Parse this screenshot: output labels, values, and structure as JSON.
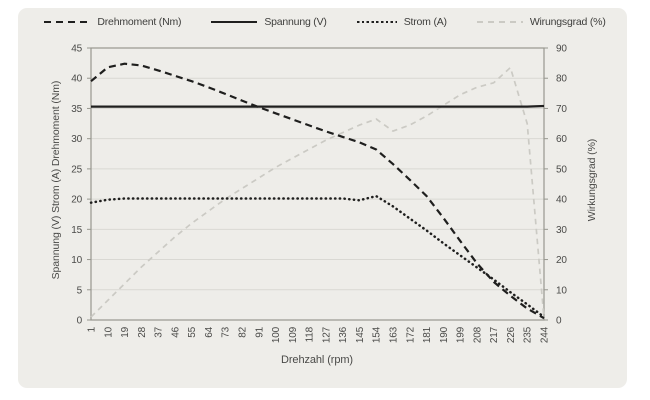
{
  "chart_data": {
    "type": "line",
    "xlabel": "Drehzahl (rpm)",
    "ylabel_left": "Spannung (V) Strom (A) Drehmoment (Nm)",
    "ylabel_right": "Wirkungsgrad (%)",
    "x_categories": [
      1,
      10,
      19,
      28,
      37,
      46,
      55,
      64,
      73,
      82,
      91,
      100,
      109,
      118,
      127,
      136,
      145,
      154,
      163,
      172,
      181,
      190,
      199,
      208,
      217,
      226,
      235,
      244
    ],
    "y_left": {
      "min": 0,
      "max": 45,
      "ticks": [
        0,
        5,
        10,
        15,
        20,
        25,
        30,
        35,
        40,
        45
      ]
    },
    "y_right": {
      "min": 0,
      "max": 90,
      "ticks": [
        0,
        10,
        20,
        30,
        40,
        50,
        60,
        70,
        80,
        90
      ]
    },
    "grid": "horizontal",
    "legend_position": "top",
    "series": [
      {
        "name": "Drehmoment (Nm)",
        "axis": "left",
        "style": "dashed",
        "color": "#1f1f1e",
        "values": [
          39.5,
          41.8,
          42.4,
          42.1,
          41.3,
          40.4,
          39.5,
          38.5,
          37.4,
          36.3,
          35.2,
          34.2,
          33.2,
          32.2,
          31.2,
          30.3,
          29.4,
          28.2,
          25.8,
          23.2,
          20.5,
          16.9,
          13.1,
          9.4,
          6.3,
          4.0,
          1.9,
          0.3
        ]
      },
      {
        "name": "Spannung (V)",
        "axis": "left",
        "style": "solid",
        "color": "#1f1f1e",
        "values": [
          35.3,
          35.3,
          35.3,
          35.3,
          35.3,
          35.3,
          35.3,
          35.3,
          35.3,
          35.3,
          35.3,
          35.3,
          35.3,
          35.3,
          35.3,
          35.3,
          35.3,
          35.3,
          35.3,
          35.3,
          35.3,
          35.3,
          35.3,
          35.3,
          35.3,
          35.3,
          35.3,
          35.4
        ]
      },
      {
        "name": "Strom (A)",
        "axis": "left",
        "style": "dotted",
        "color": "#1f1f1e",
        "values": [
          19.4,
          19.9,
          20.1,
          20.1,
          20.1,
          20.1,
          20.1,
          20.1,
          20.1,
          20.1,
          20.1,
          20.1,
          20.1,
          20.1,
          20.1,
          20.1,
          19.8,
          20.5,
          18.8,
          16.8,
          14.8,
          12.7,
          10.7,
          8.7,
          6.7,
          4.6,
          2.6,
          0.5
        ]
      },
      {
        "name": "Wirungsgrad (%)",
        "axis": "right",
        "style": "dashed-light",
        "color": "#cbcac4",
        "values": [
          1,
          6.5,
          12,
          17.5,
          22.5,
          27.5,
          32,
          36,
          40,
          43.5,
          47,
          50.5,
          53.5,
          56.5,
          59.5,
          62,
          64.5,
          66.5,
          62.5,
          64.5,
          67.5,
          71,
          74.5,
          77,
          78.5,
          83.5,
          65,
          0.5
        ]
      }
    ],
    "colors": {
      "panel_bg": "#eeede9",
      "page_bg": "#ffffff",
      "grid": "#d9d8d3",
      "border": "#97978f",
      "text": "#4a4a48",
      "dark_line": "#1f1f1e",
      "light_line": "#cbcac4"
    }
  }
}
